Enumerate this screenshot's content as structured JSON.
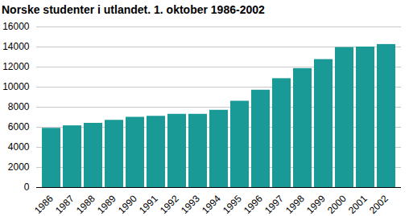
{
  "chart_data": {
    "type": "bar",
    "title": "Norske studenter i utlandet. 1. oktober 1986-2002",
    "categories": [
      "1986",
      "1987",
      "1988",
      "1989",
      "1990",
      "1991",
      "1992",
      "1993",
      "1994",
      "1995",
      "1996",
      "1997",
      "1998",
      "1999",
      "2000",
      "2001",
      "2002"
    ],
    "values": [
      5900,
      6150,
      6400,
      6700,
      7000,
      7100,
      7300,
      7300,
      7700,
      8600,
      9700,
      10850,
      11850,
      12750,
      13950,
      14000,
      14250
    ],
    "color": "#1a9a96",
    "ylim": [
      0,
      16000
    ],
    "yticks": [
      0,
      2000,
      4000,
      6000,
      8000,
      10000,
      12000,
      14000,
      16000
    ],
    "grid": true
  }
}
